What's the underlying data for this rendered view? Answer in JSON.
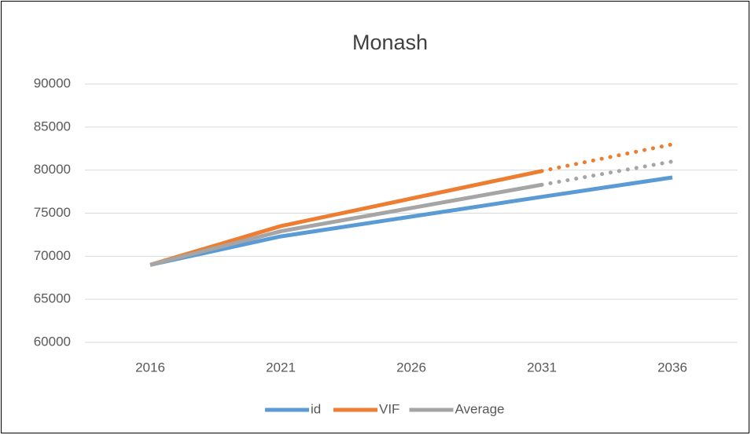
{
  "chart_data": {
    "type": "line",
    "title": "Monash",
    "categories": [
      "2016",
      "2021",
      "2026",
      "2031",
      "2036"
    ],
    "series": [
      {
        "name": "id",
        "color": "#5b9bd5",
        "values": [
          69000,
          72300,
          74600,
          76900,
          79150
        ]
      },
      {
        "name": "VIF",
        "color": "#ed7d31",
        "values": [
          69000,
          73500,
          76700,
          79900,
          83000
        ],
        "dotted_from": 3
      },
      {
        "name": "Average",
        "color": "#a5a5a5",
        "values": [
          69000,
          72900,
          75600,
          78300,
          81000
        ],
        "dotted_from": 3
      }
    ],
    "ylim": [
      60000,
      90000
    ],
    "yticks": [
      60000,
      65000,
      70000,
      75000,
      80000,
      85000,
      90000
    ],
    "grid": true,
    "legend": "bottom"
  }
}
